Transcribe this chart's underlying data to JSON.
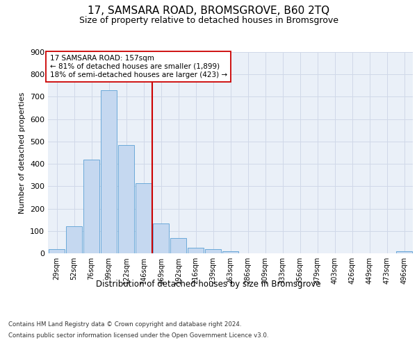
{
  "title": "17, SAMSARA ROAD, BROMSGROVE, B60 2TQ",
  "subtitle": "Size of property relative to detached houses in Bromsgrove",
  "xlabel": "Distribution of detached houses by size in Bromsgrove",
  "ylabel": "Number of detached properties",
  "footer_line1": "Contains HM Land Registry data © Crown copyright and database right 2024.",
  "footer_line2": "Contains public sector information licensed under the Open Government Licence v3.0.",
  "bar_labels": [
    "29sqm",
    "52sqm",
    "76sqm",
    "99sqm",
    "122sqm",
    "146sqm",
    "169sqm",
    "192sqm",
    "216sqm",
    "239sqm",
    "263sqm",
    "286sqm",
    "309sqm",
    "333sqm",
    "356sqm",
    "379sqm",
    "403sqm",
    "426sqm",
    "449sqm",
    "473sqm",
    "496sqm"
  ],
  "bar_values": [
    20,
    120,
    418,
    730,
    483,
    313,
    133,
    68,
    25,
    20,
    10,
    0,
    0,
    0,
    0,
    0,
    0,
    0,
    0,
    0,
    10
  ],
  "bar_color": "#c5d8f0",
  "bar_edge_color": "#5a9fd4",
  "vline_x": 5.5,
  "vline_color": "#cc0000",
  "annotation_text": "17 SAMSARA ROAD: 157sqm\n← 81% of detached houses are smaller (1,899)\n18% of semi-detached houses are larger (423) →",
  "annotation_box_color": "#ffffff",
  "annotation_box_edge": "#cc0000",
  "ylim": [
    0,
    900
  ],
  "yticks": [
    0,
    100,
    200,
    300,
    400,
    500,
    600,
    700,
    800,
    900
  ],
  "grid_color": "#d0d8e8",
  "background_color": "#eaf0f8",
  "fig_background": "#ffffff",
  "title_fontsize": 11,
  "subtitle_fontsize": 9
}
